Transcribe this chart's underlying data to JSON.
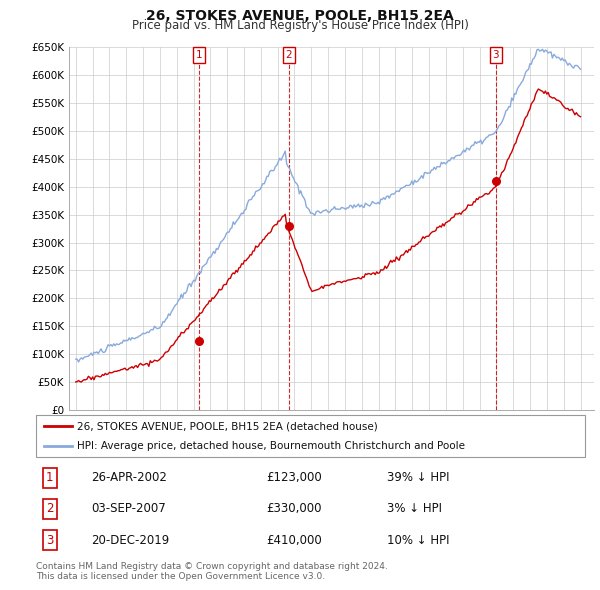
{
  "title": "26, STOKES AVENUE, POOLE, BH15 2EA",
  "subtitle": "Price paid vs. HM Land Registry's House Price Index (HPI)",
  "legend_line1": "26, STOKES AVENUE, POOLE, BH15 2EA (detached house)",
  "legend_line2": "HPI: Average price, detached house, Bournemouth Christchurch and Poole",
  "footer": "Contains HM Land Registry data © Crown copyright and database right 2024.\nThis data is licensed under the Open Government Licence v3.0.",
  "transactions": [
    {
      "num": 1,
      "date": "26-APR-2002",
      "price": "£123,000",
      "hpi": "39% ↓ HPI",
      "year": 2002.32
    },
    {
      "num": 2,
      "date": "03-SEP-2007",
      "price": "£330,000",
      "hpi": "3% ↓ HPI",
      "year": 2007.67
    },
    {
      "num": 3,
      "date": "20-DEC-2019",
      "price": "£410,000",
      "hpi": "10% ↓ HPI",
      "year": 2019.97
    }
  ],
  "transaction_prices": [
    123000,
    330000,
    410000
  ],
  "ylim": [
    0,
    650000
  ],
  "yticks": [
    0,
    50000,
    100000,
    150000,
    200000,
    250000,
    300000,
    350000,
    400000,
    450000,
    500000,
    550000,
    600000,
    650000
  ],
  "ytick_labels": [
    "£0",
    "£50K",
    "£100K",
    "£150K",
    "£200K",
    "£250K",
    "£300K",
    "£350K",
    "£400K",
    "£450K",
    "£500K",
    "£550K",
    "£600K",
    "£650K"
  ],
  "color_price_paid": "#cc0000",
  "color_hpi": "#88aadd",
  "background_color": "#ffffff",
  "grid_color": "#cccccc",
  "xmin": 1995,
  "xmax": 2025
}
